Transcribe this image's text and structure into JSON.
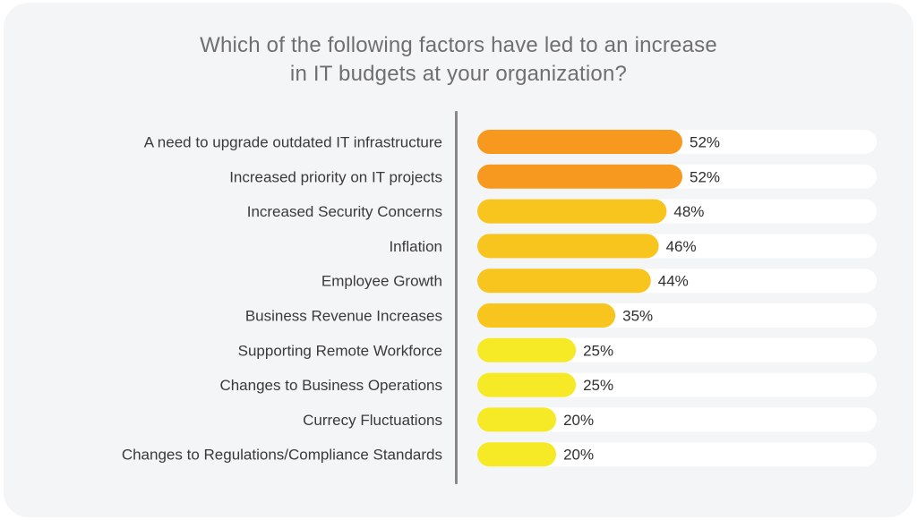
{
  "chart_data": {
    "type": "bar",
    "orientation": "horizontal",
    "title_line1": "Which of the following factors have led to an increase",
    "title_line2": "in IT budgets at your organization?",
    "xlim": [
      0,
      100
    ],
    "value_suffix": "%",
    "categories": [
      "A need to upgrade outdated IT infrastructure",
      "Increased priority on IT projects",
      "Increased Security Concerns",
      "Inflation",
      "Employee Growth",
      "Business Revenue Increases",
      "Supporting Remote Workforce",
      "Changes to Business Operations",
      "Currecy Fluctuations",
      "Changes to Regulations/Compliance Standards"
    ],
    "values": [
      52,
      52,
      48,
      46,
      44,
      35,
      25,
      25,
      20,
      20
    ],
    "value_labels": [
      "52%",
      "52%",
      "48%",
      "46%",
      "44%",
      "35%",
      "25%",
      "25%",
      "20%",
      "20%"
    ],
    "bar_colors": [
      "#f7991f",
      "#f7991f",
      "#f7c51e",
      "#f7c51e",
      "#f7c51e",
      "#f7c51e",
      "#f5ea25",
      "#f5ea25",
      "#f5ea25",
      "#f5ea25"
    ],
    "track_color": "#ffffff",
    "grid": false,
    "legend": "none"
  }
}
